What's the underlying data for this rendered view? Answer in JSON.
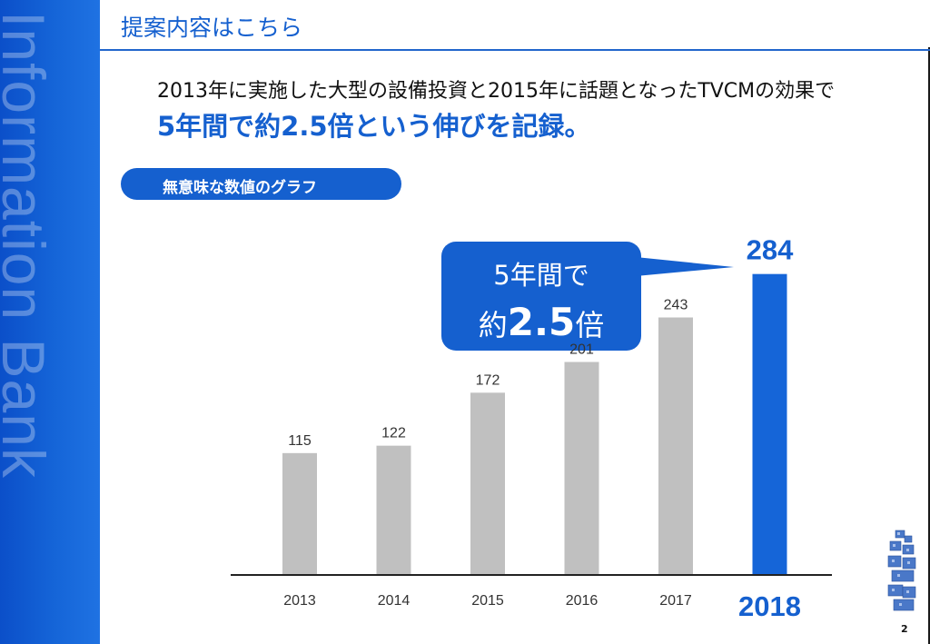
{
  "sidebar": {
    "brand_text": "Information Bank"
  },
  "header": {
    "title": "提案内容はこちら"
  },
  "headline": {
    "line1": "2013年に実施した大型の設備投資と2015年に話題となったTVCMの効果で",
    "line2": "5年間で約2.5倍という伸びを記録。"
  },
  "pill": {
    "label": "無意味な数値のグラフ"
  },
  "callout": {
    "line1": "5年間で",
    "line2_prefix": "約",
    "line2_value": "2.5",
    "line2_suffix": "倍"
  },
  "colors": {
    "brand_blue": "#1560cf",
    "bar_gray": "#c0c0c0",
    "highlight_bar": "#1565d8",
    "axis": "#222222"
  },
  "page_number": "2",
  "chart_data": {
    "type": "bar",
    "categories": [
      "2013",
      "2014",
      "2015",
      "2016",
      "2017",
      "2018"
    ],
    "values": [
      115,
      122,
      172,
      201,
      243,
      284
    ],
    "highlight_index": 5,
    "ylim": [
      0,
      300
    ],
    "title": "",
    "xlabel": "",
    "ylabel": "",
    "grid": false,
    "legend": "none"
  }
}
